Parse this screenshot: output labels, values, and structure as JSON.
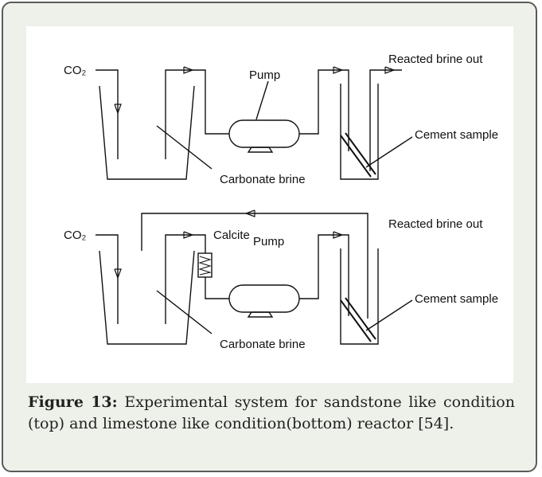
{
  "figure": {
    "top": {
      "co2": "CO₂",
      "pump": "Pump",
      "reacted_out": "Reacted brine out",
      "cement": "Cement sample",
      "brine": "Carbonate brine"
    },
    "bottom": {
      "co2": "CO₂",
      "calcite": "Calcite",
      "pump": "Pump",
      "reacted_out": "Reacted brine out",
      "cement": "Cement sample",
      "brine": "Carbonate brine"
    },
    "caption": {
      "label": "Figure 13:",
      "text": "Experimental system for sandstone like condition (top) and limestone like condition(bottom) reactor [54]."
    }
  }
}
